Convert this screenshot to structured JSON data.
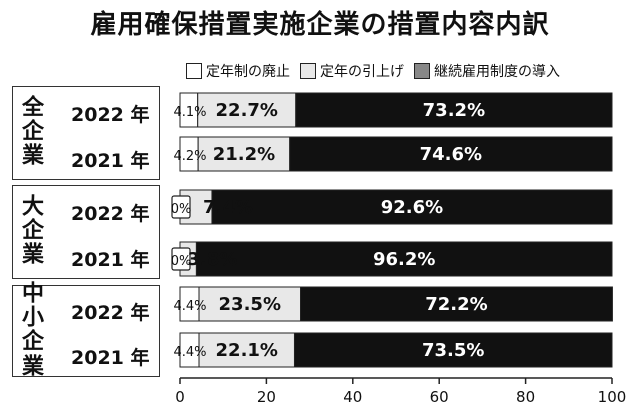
{
  "chart_data": {
    "type": "bar",
    "orientation": "horizontal",
    "stacked": true,
    "title": "雇用確保措置実施企業の措置内容内訳",
    "xlim": [
      0,
      100
    ],
    "xticks": [
      0,
      20,
      40,
      60,
      80,
      100
    ],
    "legend_position": "top",
    "series": [
      {
        "name": "定年制の廃止",
        "color": "#ffffff"
      },
      {
        "name": "定年の引上げ",
        "color": "#e8e8e8"
      },
      {
        "name": "継続雇用制度の導入",
        "color": "#111111"
      }
    ],
    "groups": [
      {
        "name": "全企業",
        "rows": [
          {
            "year": "2022 年",
            "values": [
              4.1,
              22.7,
              73.2
            ],
            "labels": [
              "4.1%",
              "22.7%",
              "73.2%"
            ]
          },
          {
            "year": "2021 年",
            "values": [
              4.2,
              21.2,
              74.6
            ],
            "labels": [
              "4.2%",
              "21.2%",
              "74.6%"
            ]
          }
        ]
      },
      {
        "name": "大企業",
        "rows": [
          {
            "year": "2022 年",
            "values": [
              0,
              7.4,
              92.6
            ],
            "labels": [
              "0%",
              "7.4%",
              "92.6%"
            ]
          },
          {
            "year": "2021 年",
            "values": [
              0,
              3.8,
              96.2
            ],
            "labels": [
              "0%",
              "3.8%",
              "96.2%"
            ]
          }
        ]
      },
      {
        "name": "中小企業",
        "rows": [
          {
            "year": "2022 年",
            "values": [
              4.4,
              23.5,
              72.2
            ],
            "labels": [
              "4.4%",
              "23.5%",
              "72.2%"
            ]
          },
          {
            "year": "2021 年",
            "values": [
              4.4,
              22.1,
              73.5
            ],
            "labels": [
              "4.4%",
              "22.1%",
              "73.5%"
            ]
          }
        ]
      }
    ]
  }
}
